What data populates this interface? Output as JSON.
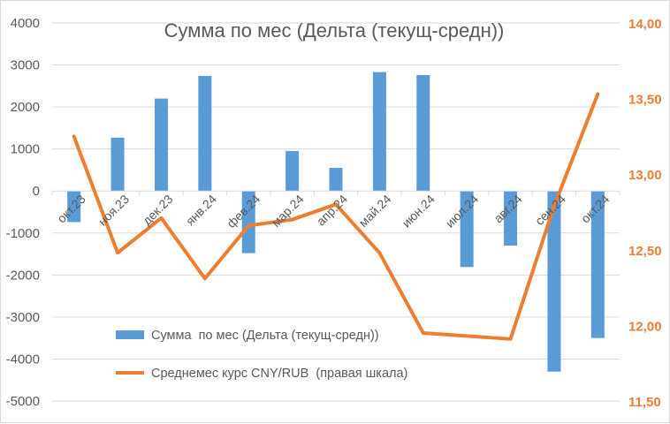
{
  "chart_data": {
    "type": "bar+line",
    "title": "Сумма по мес (Дельта (текущ-средн))",
    "categories": [
      "окт.23",
      "ноя.23",
      "дек.23",
      "янв.24",
      "фев.24",
      "мар.24",
      "апр.24",
      "май.24",
      "июн.24",
      "июл.24",
      "авг.24",
      "сен.24",
      "окт.24"
    ],
    "series": [
      {
        "name": "Сумма  по мес (Дельта (текущ-средн))",
        "type": "bar",
        "axis": "left",
        "color": "#5B9BD5",
        "values": [
          -740,
          1270,
          2200,
          2740,
          -1480,
          950,
          550,
          2830,
          2760,
          -1810,
          -1300,
          -4300,
          -3500
        ]
      },
      {
        "name": "Среднемес курс CNY/RUB  (правая шкала)",
        "type": "line",
        "axis": "right",
        "color": "#ED7D31",
        "values": [
          13.25,
          12.48,
          12.71,
          12.31,
          12.66,
          12.7,
          12.8,
          12.48,
          11.95,
          11.93,
          11.91,
          12.79,
          13.53
        ]
      }
    ],
    "left_axis": {
      "ylim": [
        -5000,
        4000
      ],
      "ticks": [
        "4000",
        "3000",
        "2000",
        "1000",
        "0",
        "-1000",
        "-2000",
        "-3000",
        "-4000",
        "-5000"
      ],
      "tick_values": [
        4000,
        3000,
        2000,
        1000,
        0,
        -1000,
        -2000,
        -3000,
        -4000,
        -5000
      ]
    },
    "right_axis": {
      "ylim": [
        11.5,
        14.0
      ],
      "ticks": [
        "14,00",
        "13,50",
        "13,00",
        "12,50",
        "12,00",
        "11,50"
      ],
      "tick_values": [
        14.0,
        13.5,
        13.0,
        12.5,
        12.0,
        11.5
      ]
    },
    "grid": true,
    "legend_position": "bottom-left inside"
  }
}
